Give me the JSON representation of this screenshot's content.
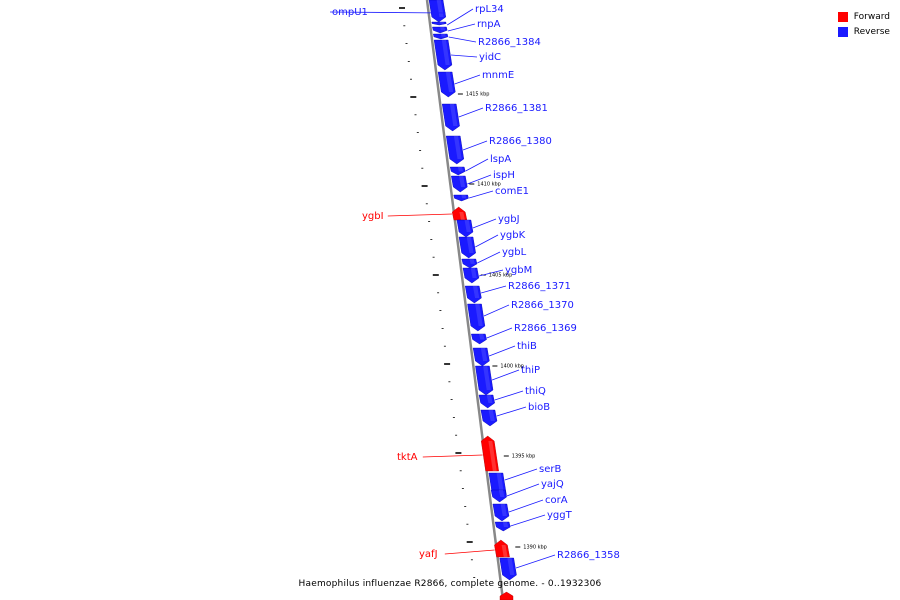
{
  "colors": {
    "forward": "#ff0000",
    "reverse": "#1a1aff",
    "backbone": "#888888"
  },
  "legend": [
    {
      "label": "Forward",
      "color": "#ff0000"
    },
    {
      "label": "Reverse",
      "color": "#1a1aff"
    }
  ],
  "caption": "Haemophilus influenzae R2866, complete genome. - 0..1932306",
  "scale_ticks": [
    "1415 kbp",
    "1410 kbp",
    "1405 kbp",
    "1400 kbp",
    "1395 kbp",
    "1390 kbp"
  ],
  "genes": [
    {
      "name": "ompU1",
      "strand": "reverse"
    },
    {
      "name": "rpL34",
      "strand": "reverse"
    },
    {
      "name": "rnpA",
      "strand": "reverse"
    },
    {
      "name": "R2866_1384",
      "strand": "reverse"
    },
    {
      "name": "yidC",
      "strand": "reverse"
    },
    {
      "name": "mnmE",
      "strand": "reverse"
    },
    {
      "name": "R2866_1381",
      "strand": "reverse"
    },
    {
      "name": "R2866_1380",
      "strand": "reverse"
    },
    {
      "name": "lspA",
      "strand": "reverse"
    },
    {
      "name": "ispH",
      "strand": "reverse"
    },
    {
      "name": "comE1",
      "strand": "reverse"
    },
    {
      "name": "ygbI",
      "strand": "forward"
    },
    {
      "name": "ygbJ",
      "strand": "reverse"
    },
    {
      "name": "ygbK",
      "strand": "reverse"
    },
    {
      "name": "ygbL",
      "strand": "reverse"
    },
    {
      "name": "ygbM",
      "strand": "reverse"
    },
    {
      "name": "R2866_1371",
      "strand": "reverse"
    },
    {
      "name": "R2866_1370",
      "strand": "reverse"
    },
    {
      "name": "R2866_1369",
      "strand": "reverse"
    },
    {
      "name": "thiB",
      "strand": "reverse"
    },
    {
      "name": "thiP",
      "strand": "reverse"
    },
    {
      "name": "thiQ",
      "strand": "reverse"
    },
    {
      "name": "bioB",
      "strand": "reverse"
    },
    {
      "name": "tktA",
      "strand": "forward"
    },
    {
      "name": "serB",
      "strand": "reverse"
    },
    {
      "name": "yajQ",
      "strand": "reverse"
    },
    {
      "name": "corA",
      "strand": "reverse"
    },
    {
      "name": "yggT",
      "strand": "reverse"
    },
    {
      "name": "yafJ",
      "strand": "forward"
    },
    {
      "name": "R2866_1358",
      "strand": "reverse"
    }
  ]
}
